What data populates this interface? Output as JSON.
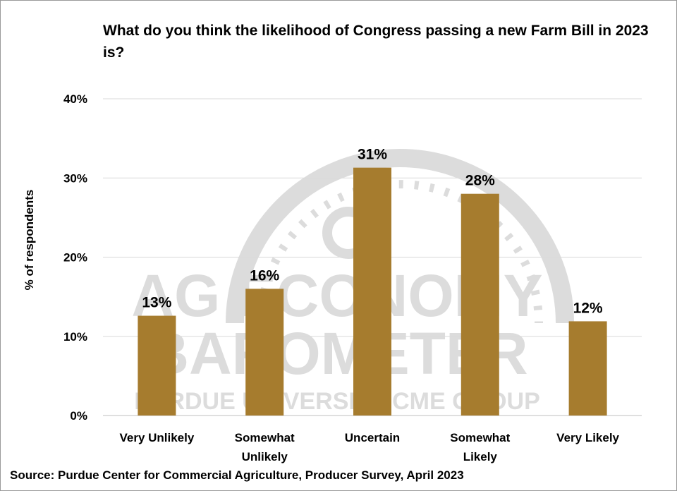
{
  "chart_data": {
    "type": "bar",
    "title": "What do you think the likelihood of Congress passing a new Farm Bill in 2023 is?",
    "ylabel": "% of respondents",
    "xlabel": "",
    "categories": [
      [
        "Very Unlikely"
      ],
      [
        "Somewhat",
        "Unlikely"
      ],
      [
        "Uncertain"
      ],
      [
        "Somewhat",
        "Likely"
      ],
      [
        "Very Likely"
      ]
    ],
    "values": [
      12.6,
      16.0,
      31.3,
      28.0,
      11.9
    ],
    "value_labels": [
      "13%",
      "16%",
      "31%",
      "28%",
      "12%"
    ],
    "y_ticks": [
      0,
      10,
      20,
      30,
      40
    ],
    "y_tick_labels": [
      "0%",
      "10%",
      "20%",
      "30%",
      "40%"
    ],
    "ylim": [
      0,
      40
    ],
    "grid": true,
    "bar_color": "#a67c2e",
    "source": "Source: Purdue Center for Commercial Agriculture, Producer Survey, April 2023"
  },
  "watermark": {
    "lines": [
      "AG ECONOMY",
      "BAROMETER",
      "PURDUE UNIVERSITY    CME GROUP"
    ],
    "color": "#dcdcdc"
  }
}
